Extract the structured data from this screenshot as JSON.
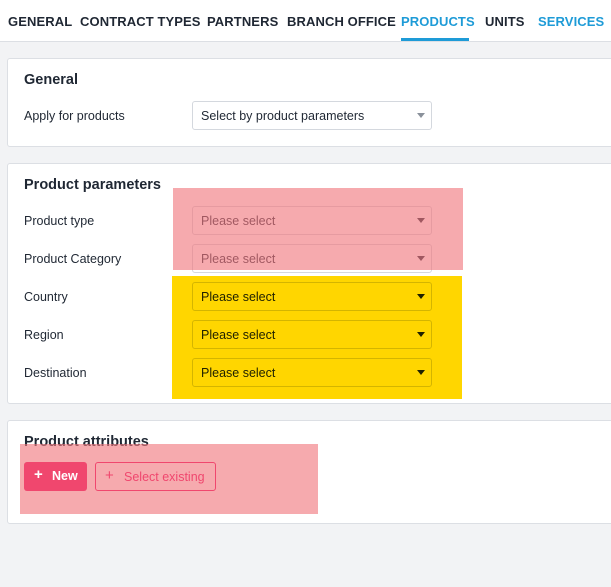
{
  "tabs": [
    {
      "label": "GENERAL",
      "state": "normal"
    },
    {
      "label": "CONTRACT TYPES",
      "state": "normal"
    },
    {
      "label": "PARTNERS",
      "state": "normal"
    },
    {
      "label": "BRANCH OFFICE",
      "state": "normal"
    },
    {
      "label": "PRODUCTS",
      "state": "active"
    },
    {
      "label": "UNITS",
      "state": "normal"
    },
    {
      "label": "SERVICES",
      "state": "link"
    }
  ],
  "general": {
    "title": "General",
    "apply_label": "Apply for products",
    "apply_value": "Select by product parameters"
  },
  "product_parameters": {
    "title": "Product parameters",
    "fields": [
      {
        "label": "Product type",
        "value": "Please select"
      },
      {
        "label": "Product Category",
        "value": "Please select"
      },
      {
        "label": "Country",
        "value": "Please select"
      },
      {
        "label": "Region",
        "value": "Please select"
      },
      {
        "label": "Destination",
        "value": "Please select"
      }
    ]
  },
  "product_attributes": {
    "title": "Product attributes",
    "new_label": "New",
    "existing_label": "Select existing",
    "plus_glyph": "+"
  },
  "colors": {
    "accent": "#1e9bd7",
    "primary_button": "#f0476e",
    "highlight_pink": "#f0767c",
    "highlight_yellow": "#ffd600"
  },
  "icons": {
    "dropdown": "caret-down-icon",
    "add": "plus-icon"
  }
}
